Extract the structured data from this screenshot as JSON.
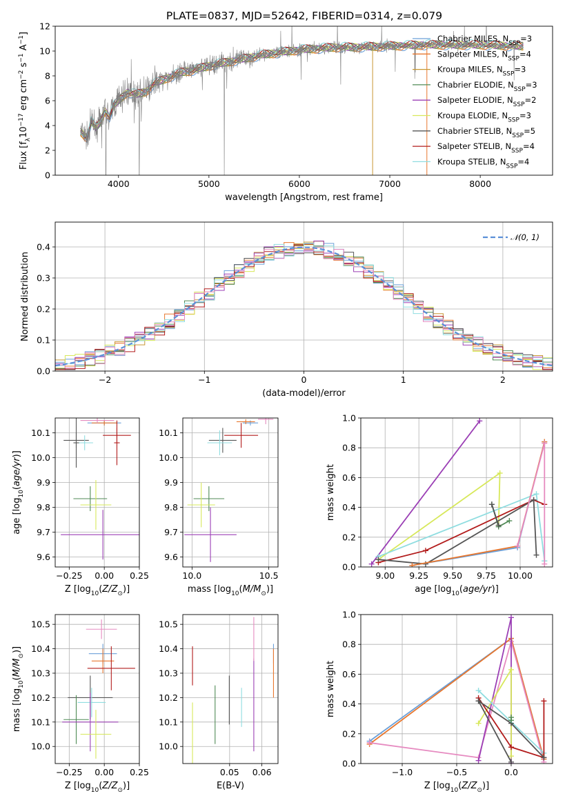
{
  "title": "PLATE=0837, MJD=52642, FIBERID=0314, z=0.079",
  "colors": {
    "c0": "#6a9fd8",
    "c1": "#e8772e",
    "c2": "#c79632",
    "c3": "#4f8a55",
    "c4": "#9b3fb5",
    "c5": "#d7e85a",
    "c6": "#555555",
    "c7": "#b21b1b",
    "c8": "#8fdde0",
    "pink": "#e68ac0",
    "gray": "#808080",
    "normal": "#5a8fd8"
  },
  "chart_data": [
    {
      "id": "spectrum",
      "type": "line",
      "title": "PLATE=0837, MJD=52642, FIBERID=0314, z=0.079",
      "xlabel": "wavelength [Angstrom, rest frame]",
      "ylabel": "Flux [f_λ10^-17 erg cm^-2 s^-1 A^-1]",
      "xlim": [
        3300,
        8800
      ],
      "ylim": [
        0,
        12
      ],
      "xticks": [
        "4000",
        "5000",
        "6000",
        "7000",
        "8000"
      ],
      "yticks": [
        "0",
        "2",
        "4",
        "6",
        "8",
        "10",
        "12"
      ],
      "legend_placement": "right",
      "series": [
        {
          "name": "Chabrier MILES, N_SSP=3",
          "color": "c0"
        },
        {
          "name": "Salpeter MILES, N_SSP=4",
          "color": "c1"
        },
        {
          "name": "Kroupa MILES, N_SSP=3",
          "color": "c2"
        },
        {
          "name": "Chabrier ELODIE, N_SSP=3",
          "color": "c3"
        },
        {
          "name": "Salpeter ELODIE, N_SSP=2",
          "color": "c4"
        },
        {
          "name": "Kroupa ELODIE, N_SSP=3",
          "color": "c5"
        },
        {
          "name": "Chabrier STELIB, N_SSP=5",
          "color": "c6"
        },
        {
          "name": "Salpeter STELIB, N_SSP=4",
          "color": "c7"
        },
        {
          "name": "Kroupa STELIB, N_SSP=4",
          "color": "c8"
        }
      ],
      "continuum": {
        "x": [
          3580,
          3650,
          3700,
          3750,
          3800,
          3850,
          3900,
          3950,
          4000,
          4100,
          4200,
          4300,
          4400,
          4500,
          4600,
          4700,
          4800,
          4900,
          5000,
          5200,
          5400,
          5600,
          5800,
          6000,
          6200,
          6400,
          6600,
          6800,
          7000,
          7200,
          7400,
          7600,
          7800,
          8000,
          8200,
          8400
        ],
        "y": [
          3.5,
          3.0,
          4.3,
          3.8,
          4.3,
          5.2,
          4.7,
          5.6,
          6.0,
          6.7,
          6.5,
          6.7,
          7.4,
          7.7,
          8.0,
          8.3,
          8.4,
          8.6,
          8.8,
          9.1,
          9.4,
          9.7,
          9.9,
          10.1,
          10.2,
          10.3,
          10.3,
          10.35,
          10.4,
          10.45,
          10.5,
          10.5,
          10.5,
          10.5,
          10.45,
          10.4
        ]
      }
    },
    {
      "id": "residuals",
      "type": "line",
      "xlabel": "(data-model)/error",
      "ylabel": "Normed distribution",
      "xlim": [
        -2.5,
        2.5
      ],
      "ylim": [
        0,
        0.48
      ],
      "xticks": [
        "−2",
        "−1",
        "0",
        "1",
        "2"
      ],
      "yticks": [
        "0.0",
        "0.1",
        "0.2",
        "0.3",
        "0.4"
      ],
      "legend": [
        "𝒩(0, 1)"
      ],
      "legend_placement": "top-right",
      "histogram_bin_width": 0.1
    },
    {
      "id": "age-vs-Z",
      "type": "scatter",
      "xlabel": "Z [log10(Z/Z⊙)]",
      "ylabel": "age [log10(age/yr)]",
      "xlim": [
        -0.35,
        0.25
      ],
      "ylim": [
        9.56,
        10.16
      ],
      "xticks": [
        "−0.25",
        "0.00",
        "0.25"
      ],
      "yticks": [
        "9.6",
        "9.7",
        "9.8",
        "9.9",
        "10.0",
        "10.1"
      ],
      "points": [
        {
          "color": "c0",
          "x": 0.0,
          "xerr": 0.12,
          "y": 10.14,
          "yerr": 0.01
        },
        {
          "color": "c1",
          "x": 0.0,
          "xerr": 0.09,
          "y": 10.14,
          "yerr": 0.01
        },
        {
          "color": "pink",
          "x": -0.05,
          "xerr": 0.12,
          "y": 10.15,
          "yerr": 0.01
        },
        {
          "color": "c3",
          "x": -0.1,
          "xerr": 0.12,
          "y": 9.835,
          "yerr": 0.05
        },
        {
          "color": "c4",
          "x": -0.01,
          "xerr": 0.3,
          "y": 9.69,
          "yerr": 0.1
        },
        {
          "color": "c5",
          "x": -0.06,
          "xerr": 0.11,
          "y": 9.81,
          "yerr": 0.1
        },
        {
          "color": "c6",
          "x": -0.2,
          "xerr": 0.09,
          "y": 10.07,
          "yerr": 0.03
        },
        {
          "color": "c7",
          "x": 0.09,
          "xerr": 0.1,
          "y": 10.09,
          "yerr": 0.03
        },
        {
          "color": "c8",
          "x": -0.14,
          "xerr": 0.06,
          "y": 10.06,
          "yerr": 0.03
        },
        {
          "color": "c6",
          "x": -0.2,
          "xerr": 0.02,
          "y": 10.06,
          "yerr": 0.1
        },
        {
          "color": "c7",
          "x": 0.09,
          "xerr": 0.02,
          "y": 10.06,
          "yerr": 0.09
        }
      ]
    },
    {
      "id": "age-vs-mass",
      "type": "scatter",
      "xlabel": "mass [log10(M/M⊙)]",
      "ylabel": "",
      "xlim": [
        9.94,
        10.56
      ],
      "ylim": [
        9.56,
        10.16
      ],
      "xticks": [
        "10.0",
        "10.5"
      ],
      "yticks": [
        "9.6",
        "9.7",
        "9.8",
        "9.9",
        "10.0",
        "10.1"
      ],
      "points": [
        {
          "color": "c0",
          "x": 10.38,
          "xerr": 0.05,
          "y": 10.14,
          "yerr": 0.01
        },
        {
          "color": "c1",
          "x": 10.35,
          "xerr": 0.06,
          "y": 10.145,
          "yerr": 0.01
        },
        {
          "color": "pink",
          "x": 10.48,
          "xerr": 0.05,
          "y": 10.155,
          "yerr": 0.02
        },
        {
          "color": "c3",
          "x": 10.11,
          "xerr": 0.1,
          "y": 9.835,
          "yerr": 0.05
        },
        {
          "color": "c4",
          "x": 10.12,
          "xerr": 0.17,
          "y": 9.69,
          "yerr": 0.11
        },
        {
          "color": "c5",
          "x": 10.06,
          "xerr": 0.09,
          "y": 9.81,
          "yerr": 0.09
        },
        {
          "color": "c6",
          "x": 10.2,
          "xerr": 0.09,
          "y": 10.07,
          "yerr": 0.05
        },
        {
          "color": "c7",
          "x": 10.32,
          "xerr": 0.11,
          "y": 10.09,
          "yerr": 0.05
        },
        {
          "color": "c8",
          "x": 10.18,
          "xerr": 0.08,
          "y": 10.06,
          "yerr": 0.05
        }
      ]
    },
    {
      "id": "weight-vs-age",
      "type": "line",
      "xlabel": "age [log10(age/yr)]",
      "ylabel": "mass weight",
      "xlim": [
        8.82,
        10.24
      ],
      "ylim": [
        0,
        1
      ],
      "xticks": [
        "9.00",
        "9.25",
        "9.50",
        "9.75",
        "10.00"
      ],
      "yticks": [
        "0.0",
        "0.2",
        "0.4",
        "0.6",
        "0.8",
        "1.0"
      ],
      "series": [
        {
          "color": "c4",
          "x": [
            8.9,
            9.7
          ],
          "y": [
            0.02,
            0.98
          ]
        },
        {
          "color": "c5",
          "x": [
            8.95,
            9.85,
            9.84
          ],
          "y": [
            0.05,
            0.63,
            0.28
          ]
        },
        {
          "color": "c8",
          "x": [
            8.95,
            10.12,
            10.18,
            10.18
          ],
          "y": [
            0.07,
            0.49,
            0.04,
            0.04
          ]
        },
        {
          "color": "c7",
          "x": [
            8.95,
            9.3,
            10.1,
            10.18
          ],
          "y": [
            0.03,
            0.11,
            0.45,
            0.42
          ]
        },
        {
          "color": "c6",
          "x": [
            8.95,
            9.3,
            10.1,
            10.12
          ],
          "y": [
            0.05,
            0.02,
            0.45,
            0.08
          ]
        },
        {
          "color": "c0",
          "x": [
            9.2,
            9.98,
            10.18
          ],
          "y": [
            0.01,
            0.13,
            0.84
          ]
        },
        {
          "color": "c1",
          "x": [
            9.2,
            9.98,
            10.18
          ],
          "y": [
            0.01,
            0.14,
            0.84
          ]
        },
        {
          "color": "pink",
          "x": [
            9.98,
            10.18,
            10.18
          ],
          "y": [
            0.14,
            0.83,
            0.02
          ]
        },
        {
          "color": "c3",
          "x": [
            9.79,
            9.84,
            9.92
          ],
          "y": [
            0.42,
            0.27,
            0.31
          ]
        },
        {
          "color": "c6",
          "x": [
            9.79,
            9.84
          ],
          "y": [
            0.42,
            0.28
          ]
        }
      ]
    },
    {
      "id": "mass-vs-Z",
      "type": "scatter",
      "xlabel": "Z [log10(Z/Z⊙)]",
      "ylabel": "mass [log10(M/M⊙)]",
      "xlim": [
        -0.35,
        0.25
      ],
      "ylim": [
        9.93,
        10.54
      ],
      "xticks": [
        "−0.25",
        "0.00",
        "0.25"
      ],
      "yticks": [
        "10.0",
        "10.1",
        "10.2",
        "10.3",
        "10.4",
        "10.5"
      ],
      "points": [
        {
          "color": "pink",
          "x": -0.02,
          "xerr": 0.11,
          "y": 10.48,
          "yerr": 0.04
        },
        {
          "color": "c0",
          "x": -0.01,
          "xerr": 0.1,
          "y": 10.38,
          "yerr": 0.04
        },
        {
          "color": "c1",
          "x": -0.01,
          "xerr": 0.08,
          "y": 10.35,
          "yerr": 0.05
        },
        {
          "color": "c7",
          "x": 0.05,
          "xerr": 0.17,
          "y": 10.32,
          "yerr": 0.09
        },
        {
          "color": "c6",
          "x": -0.1,
          "xerr": 0.16,
          "y": 10.2,
          "yerr": 0.09
        },
        {
          "color": "c8",
          "x": -0.09,
          "xerr": 0.1,
          "y": 10.18,
          "yerr": 0.06
        },
        {
          "color": "c3",
          "x": -0.2,
          "xerr": 0.09,
          "y": 10.11,
          "yerr": 0.1
        },
        {
          "color": "c4",
          "x": -0.1,
          "xerr": 0.2,
          "y": 10.1,
          "yerr": 0.12
        },
        {
          "color": "c5",
          "x": -0.06,
          "xerr": 0.11,
          "y": 10.05,
          "yerr": 0.1
        }
      ]
    },
    {
      "id": "mass-vs-ebv",
      "type": "scatter",
      "xlabel": "E(B-V)",
      "ylabel": "",
      "xlim": [
        0.0355,
        0.065
      ],
      "ylim": [
        9.93,
        10.54
      ],
      "xticks": [
        "0.05",
        "0.06"
      ],
      "yticks": [
        "10.0",
        "10.1",
        "10.2",
        "10.3",
        "10.4",
        "10.5"
      ],
      "points": [
        {
          "color": "c7",
          "x": 0.0385,
          "xerr": 0,
          "y": 10.33,
          "yerr": 0.08
        },
        {
          "color": "c5",
          "x": 0.0385,
          "xerr": 0,
          "y": 10.04,
          "yerr": 0.14
        },
        {
          "color": "c3",
          "x": 0.0455,
          "xerr": 0,
          "y": 10.13,
          "yerr": 0.12
        },
        {
          "color": "c6",
          "x": 0.0499,
          "xerr": 0,
          "y": 10.19,
          "yerr": 0.1
        },
        {
          "color": "c8",
          "x": 0.0537,
          "xerr": 0,
          "y": 10.16,
          "yerr": 0.08
        },
        {
          "color": "c4",
          "x": 0.0575,
          "xerr": 0,
          "y": 10.17,
          "yerr": 0.19
        },
        {
          "color": "pink",
          "x": 0.0575,
          "xerr": 0,
          "y": 10.44,
          "yerr": 0.09
        },
        {
          "color": "c0",
          "x": 0.0636,
          "xerr": 0,
          "y": 10.38,
          "yerr": 0.04
        },
        {
          "color": "c1",
          "x": 0.0636,
          "xerr": 0,
          "y": 10.3,
          "yerr": 0.1
        }
      ]
    },
    {
      "id": "weight-vs-Z",
      "type": "line",
      "xlabel": "Z [log10(Z/Z⊙)]",
      "ylabel": "mass weight",
      "xlim": [
        -1.38,
        0.38
      ],
      "ylim": [
        0,
        1
      ],
      "xticks": [
        "−1.0",
        "−0.5",
        "0.0"
      ],
      "yticks": [
        "0.0",
        "0.2",
        "0.4",
        "0.6",
        "0.8",
        "1.0"
      ],
      "series": [
        {
          "color": "c0",
          "x": [
            -1.3,
            0.0,
            0.3
          ],
          "y": [
            0.15,
            0.84,
            0.03
          ]
        },
        {
          "color": "c1",
          "x": [
            -1.3,
            0.0,
            0.3
          ],
          "y": [
            0.13,
            0.84,
            0.03
          ]
        },
        {
          "color": "pink",
          "x": [
            -1.3,
            -0.3,
            0.0,
            0.3
          ],
          "y": [
            0.14,
            0.04,
            0.82,
            0.01
          ]
        },
        {
          "color": "c4",
          "x": [
            -0.3,
            0.0,
            0.0
          ],
          "y": [
            0.02,
            0.98,
            0.0
          ]
        },
        {
          "color": "c5",
          "x": [
            -0.3,
            0.0,
            0.0
          ],
          "y": [
            0.27,
            0.63,
            0.05
          ]
        },
        {
          "color": "c8",
          "x": [
            -0.3,
            0.3,
            0.3
          ],
          "y": [
            0.49,
            0.07,
            0.04
          ]
        },
        {
          "color": "c7",
          "x": [
            -0.3,
            0.0,
            0.3,
            0.3
          ],
          "y": [
            0.44,
            0.11,
            0.04,
            0.42
          ]
        },
        {
          "color": "c6",
          "x": [
            -0.3,
            0.0
          ],
          "y": [
            0.42,
            0.01
          ]
        },
        {
          "color": "c6",
          "x": [
            -0.3,
            0.0,
            0.3
          ],
          "y": [
            0.42,
            0.27,
            0.04
          ]
        },
        {
          "color": "c3",
          "x": [
            0.0,
            0.0
          ],
          "y": [
            0.31,
            0.29
          ]
        }
      ]
    }
  ]
}
